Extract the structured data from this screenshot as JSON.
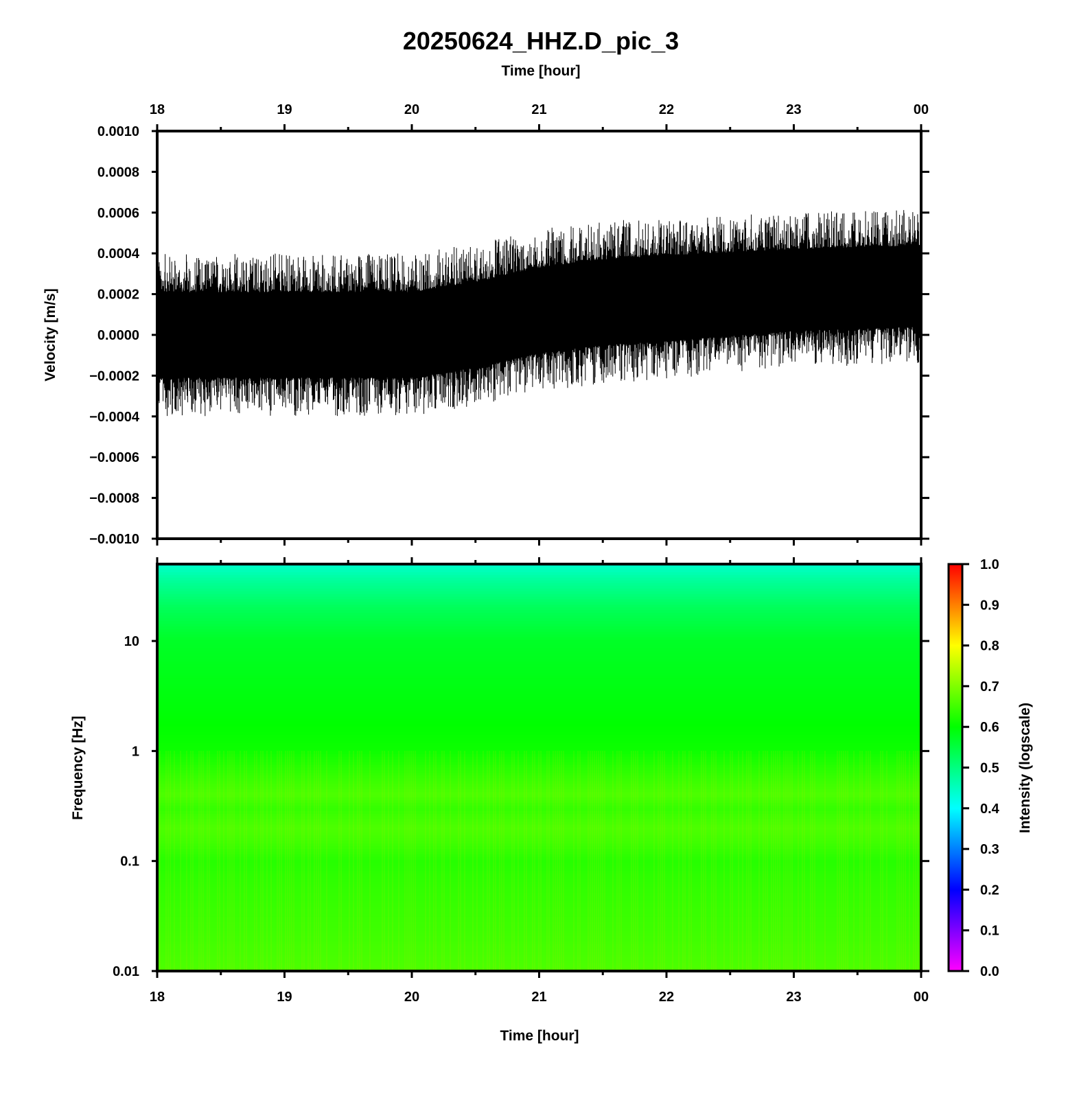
{
  "title": "20250624_HHZ.D_pic_3",
  "colors": {
    "trace": "#000000",
    "frame": "#000000"
  },
  "chart_data": [
    {
      "type": "line",
      "panel": "velocity waveform",
      "xlabel": "Time [hour]",
      "ylabel": "Velocity [m/s]",
      "xlim": [
        18,
        24
      ],
      "ylim": [
        -0.001,
        0.001
      ],
      "x_tick_labels": [
        "18",
        "19",
        "20",
        "21",
        "22",
        "23",
        "00"
      ],
      "y_tick_labels": [
        "0.0010",
        "0.0008",
        "0.0006",
        "0.0004",
        "0.0002",
        "0.0000",
        "−0.0002",
        "−0.0004",
        "−0.0006",
        "−0.0008",
        "−0.0010"
      ],
      "envelope": {
        "x": [
          18,
          19,
          20,
          20.5,
          21,
          21.5,
          22,
          23,
          24
        ],
        "center": [
          0.0,
          0.0,
          0.0,
          5e-05,
          0.00012,
          0.00016,
          0.00018,
          0.00022,
          0.00024
        ],
        "half_width": [
          0.00021,
          0.00021,
          0.00021,
          0.00021,
          0.00021,
          0.00021,
          0.00021,
          0.0002,
          0.0002
        ]
      },
      "grid": false
    },
    {
      "type": "heatmap",
      "panel": "spectrogram",
      "xlabel": "Time [hour]",
      "ylabel": "Frequency [Hz]",
      "xlim": [
        18,
        24
      ],
      "ylim": [
        0.01,
        50
      ],
      "y_scale": "log",
      "x_tick_labels": [
        "18",
        "19",
        "20",
        "21",
        "22",
        "23",
        "00"
      ],
      "y_tick_labels": [
        "10",
        "1",
        "0.1",
        "0.01"
      ],
      "freq_profile": {
        "freq": [
          0.01,
          0.02,
          0.05,
          0.1,
          0.15,
          0.2,
          0.3,
          0.4,
          0.6,
          1,
          3,
          10,
          20,
          35,
          50
        ],
        "intensity": [
          0.66,
          0.65,
          0.64,
          0.63,
          0.65,
          0.66,
          0.64,
          0.66,
          0.64,
          0.61,
          0.59,
          0.57,
          0.53,
          0.48,
          0.44
        ]
      },
      "colorbar": {
        "label": "Intensity (logscale)",
        "range": [
          0,
          1
        ],
        "tick_labels": [
          "1.0",
          "0.9",
          "0.8",
          "0.7",
          "0.6",
          "0.5",
          "0.4",
          "0.3",
          "0.2",
          "0.1",
          "0.0"
        ],
        "colors": [
          "#ff00ff",
          "#0000ff",
          "#00ffff",
          "#00ff00",
          "#ffff00",
          "#ff0000"
        ]
      }
    }
  ]
}
